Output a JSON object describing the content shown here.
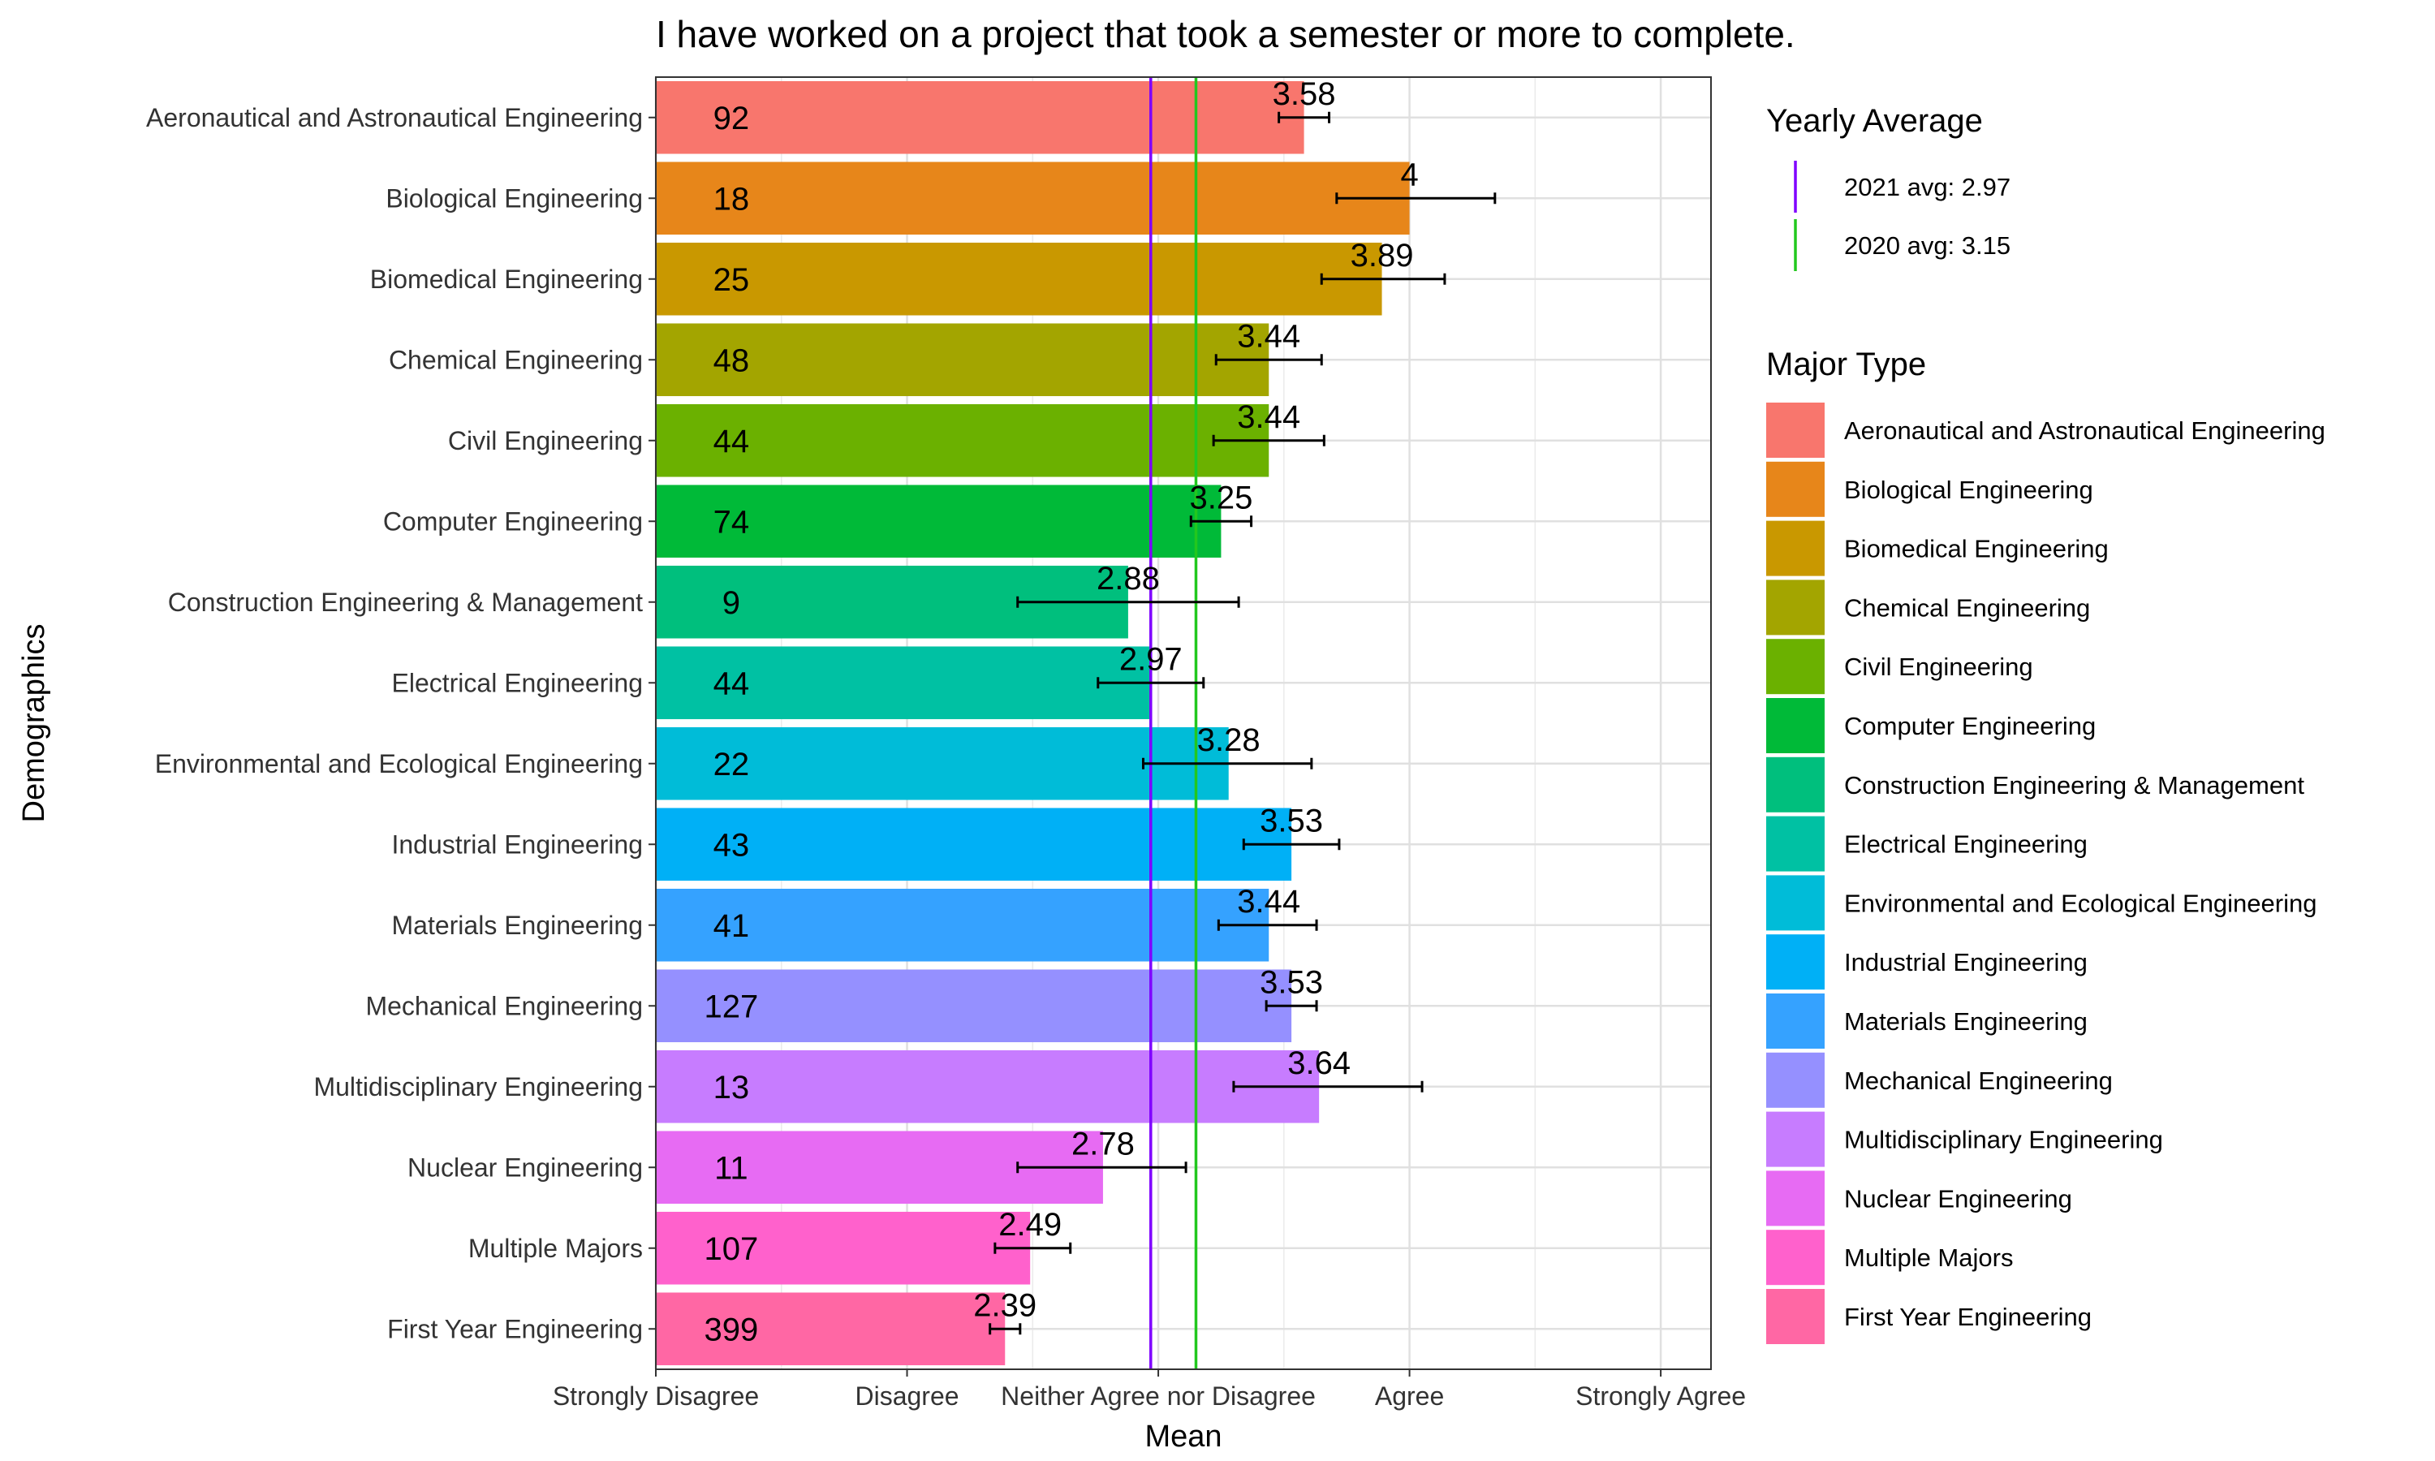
{
  "chart_data": {
    "type": "bar",
    "orientation": "horizontal",
    "title": "I have worked on a project that took a semester or more to complete.",
    "xlabel": "Mean",
    "ylabel": "Demographics",
    "xlim": [
      1,
      5.2
    ],
    "x_ticks": [
      {
        "value": 1,
        "label": "Strongly Disagree"
      },
      {
        "value": 2,
        "label": "Disagree"
      },
      {
        "value": 3,
        "label": "Neither Agree nor Disagree"
      },
      {
        "value": 4,
        "label": "Agree"
      },
      {
        "value": 5,
        "label": "Strongly Agree"
      }
    ],
    "grid": true,
    "legend_position": "right",
    "categories": [
      "Aeronautical and Astronautical Engineering",
      "Biological Engineering",
      "Biomedical Engineering",
      "Chemical Engineering",
      "Civil Engineering",
      "Computer Engineering",
      "Construction Engineering & Management",
      "Electrical Engineering",
      "Environmental and Ecological Engineering",
      "Industrial Engineering",
      "Materials Engineering",
      "Mechanical Engineering",
      "Multidisciplinary Engineering",
      "Nuclear Engineering",
      "Multiple Majors",
      "First Year Engineering"
    ],
    "values": [
      3.58,
      4,
      3.89,
      3.44,
      3.44,
      3.25,
      2.88,
      2.97,
      3.28,
      3.53,
      3.44,
      3.53,
      3.64,
      2.78,
      2.49,
      2.39
    ],
    "value_labels": [
      "3.58",
      "4",
      "3.89",
      "3.44",
      "3.44",
      "3.25",
      "2.88",
      "2.97",
      "3.28",
      "3.53",
      "3.44",
      "3.53",
      "3.64",
      "2.78",
      "2.49",
      "2.39"
    ],
    "counts": [
      "92",
      "18",
      "25",
      "48",
      "44",
      "74",
      "9",
      "44",
      "22",
      "43",
      "41",
      "127",
      "13",
      "11",
      "107",
      "399"
    ],
    "error_low": [
      3.48,
      3.71,
      3.65,
      3.23,
      3.22,
      3.13,
      2.44,
      2.76,
      2.94,
      3.34,
      3.24,
      3.43,
      3.3,
      2.44,
      2.35,
      2.33
    ],
    "error_high": [
      3.68,
      4.34,
      4.14,
      3.65,
      3.66,
      3.37,
      3.32,
      3.18,
      3.61,
      3.72,
      3.63,
      3.63,
      4.05,
      3.11,
      2.65,
      2.45
    ],
    "colors": [
      "#F8766D",
      "#E7861A",
      "#C99800",
      "#A3A500",
      "#6BB100",
      "#00BA38",
      "#00BF7D",
      "#00C1A3",
      "#00BCD8",
      "#00B0F6",
      "#35A2FF",
      "#9590FF",
      "#C77CFF",
      "#E76BF3",
      "#FF61CC",
      "#FF67A4"
    ],
    "reference_lines": [
      {
        "label": "2021 avg: 2.97",
        "value": 2.97,
        "color": "#7F00FF"
      },
      {
        "label": "2020 avg: 3.15",
        "value": 3.15,
        "color": "#22C81E"
      }
    ],
    "legend_titles": {
      "lines": "Yearly Average",
      "fill": "Major Type"
    }
  }
}
